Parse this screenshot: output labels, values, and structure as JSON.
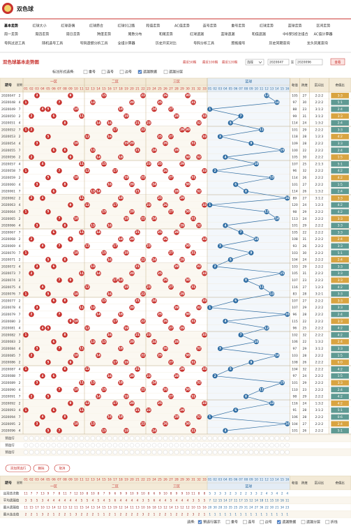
{
  "header": {
    "title": "双色球"
  },
  "nav": [
    [
      "基本走势",
      "红球大小",
      "红球奇偶",
      "红球质合",
      "红球012路",
      "和值走势",
      "AC值走势",
      "连号走势",
      "重号走势",
      "红球走势",
      "蓝球走势",
      "区间走势"
    ],
    [
      "周一走势",
      "周四走势",
      "周日走势",
      "跨度走势",
      "尾数分布",
      "和尾走势",
      "红球遗漏",
      "蓝球遗漏",
      "和值遗漏",
      "中6保5投注组合",
      "AC值计算器"
    ],
    [
      "号码过滤工具",
      "随机选号工具",
      "号码遗憾分析工具",
      "全组计算器",
      "历史开奖对比",
      "号码分析工具",
      "胆拖缩号",
      "历史同期查询",
      "龙头凤尾查询"
    ]
  ],
  "section_title": "双色球基本走势图",
  "range": {
    "options": [
      "最近50期",
      "最近100期",
      "最近120期"
    ],
    "select_label": "选择",
    "from": "2020047",
    "to_label": "至",
    "to": "2020096",
    "button": "查看"
  },
  "toolbar": {
    "label": "标注形式选择:",
    "options": [
      {
        "label": "重号",
        "checked": false
      },
      {
        "label": "连号",
        "checked": false
      },
      {
        "label": "边号",
        "checked": false
      },
      {
        "label": "遗漏数据",
        "checked": true
      },
      {
        "label": "遗漏分层",
        "checked": false
      }
    ]
  },
  "table": {
    "headers": {
      "issue": "期号",
      "week": "星期",
      "zones": [
        "一区",
        "二区",
        "三区"
      ],
      "blue": "蓝球",
      "sum": "和值",
      "span": "跨度",
      "zone_ratio": "区间比",
      "odd_even": "奇偶比"
    },
    "red_numbers": [
      "01",
      "02",
      "03",
      "04",
      "05",
      "06",
      "07",
      "08",
      "09",
      "10",
      "11",
      "12",
      "13",
      "14",
      "15",
      "16",
      "17",
      "18",
      "19",
      "20",
      "21",
      "22",
      "23",
      "24",
      "25",
      "26",
      "27",
      "28",
      "29",
      "30",
      "31",
      "32",
      "33"
    ],
    "blue_numbers": [
      "01",
      "02",
      "03",
      "04",
      "05",
      "06",
      "07",
      "08",
      "09",
      "10",
      "11",
      "12",
      "13",
      "14",
      "15",
      "16"
    ],
    "rows": [
      {
        "issue": "2020047",
        "week": 2,
        "reds": [
          3,
          9,
          15,
          22,
          26,
          30
        ],
        "blue": 12,
        "sum": 105,
        "span": 27,
        "zone": "2:2:2",
        "oe": "3:3"
      },
      {
        "issue": "2020048",
        "week": 4,
        "reds": [
          1,
          7,
          13,
          20,
          25,
          31
        ],
        "blue": 14,
        "sum": 97,
        "span": 30,
        "zone": "2:2:2",
        "oe": "5:1"
      },
      {
        "issue": "2020049",
        "week": 7,
        "reds": [
          4,
          5,
          10,
          18,
          24,
          27
        ],
        "blue": 1,
        "sum": 88,
        "span": 23,
        "zone": "3:1:2",
        "oe": "2:4"
      },
      {
        "issue": "2020050",
        "week": 2,
        "reds": [
          2,
          6,
          11,
          19,
          28,
          33
        ],
        "blue": 7,
        "sum": 99,
        "span": 31,
        "zone": "3:1:2",
        "oe": "3:3"
      },
      {
        "issue": "2020051",
        "week": 4,
        "reds": [
          8,
          14,
          16,
          21,
          23,
          32
        ],
        "blue": 5,
        "sum": 114,
        "span": 24,
        "zone": "1:3:2",
        "oe": "2:4"
      },
      {
        "issue": "2020052",
        "week": 7,
        "reds": [
          1,
          2,
          17,
          22,
          29,
          30
        ],
        "blue": 11,
        "sum": 101,
        "span": 29,
        "zone": "2:2:2",
        "oe": "3:3"
      },
      {
        "issue": "2020053",
        "week": 2,
        "reds": [
          5,
          12,
          16,
          25,
          27,
          33
        ],
        "blue": 3,
        "sum": 118,
        "span": 28,
        "zone": "1:2:3",
        "oe": "4:2"
      },
      {
        "issue": "2020054",
        "week": 4,
        "reds": [
          3,
          10,
          19,
          20,
          26,
          31
        ],
        "blue": 9,
        "sum": 109,
        "span": 28,
        "zone": "2:2:2",
        "oe": "3:3"
      },
      {
        "issue": "2020055",
        "week": 7,
        "reds": [
          6,
          8,
          13,
          21,
          24,
          28
        ],
        "blue": 15,
        "sum": 100,
        "span": 22,
        "zone": "2:2:2",
        "oe": "2:4"
      },
      {
        "issue": "2020056",
        "week": 2,
        "reds": [
          2,
          9,
          14,
          18,
          30,
          32
        ],
        "blue": 4,
        "sum": 105,
        "span": 30,
        "zone": "2:2:2",
        "oe": "1:5"
      },
      {
        "issue": "2020057",
        "week": 4,
        "reds": [
          4,
          11,
          15,
          23,
          25,
          29
        ],
        "blue": 10,
        "sum": 107,
        "span": 25,
        "zone": "2:1:3",
        "oe": "5:1"
      },
      {
        "issue": "2020058",
        "week": 7,
        "reds": [
          1,
          7,
          12,
          17,
          26,
          33
        ],
        "blue": 2,
        "sum": 96,
        "span": 32,
        "zone": "2:2:2",
        "oe": "4:2"
      },
      {
        "issue": "2020059",
        "week": 2,
        "reds": [
          5,
          10,
          19,
          22,
          27,
          31
        ],
        "blue": 13,
        "sum": 114,
        "span": 26,
        "zone": "2:2:2",
        "oe": "4:2"
      },
      {
        "issue": "2020060",
        "week": 4,
        "reds": [
          3,
          8,
          16,
          20,
          24,
          30
        ],
        "blue": 6,
        "sum": 101,
        "span": 27,
        "zone": "2:2:2",
        "oe": "1:5"
      },
      {
        "issue": "2020061",
        "week": 7,
        "reds": [
          6,
          13,
          14,
          21,
          28,
          32
        ],
        "blue": 8,
        "sum": 114,
        "span": 26,
        "zone": "1:3:2",
        "oe": "2:4"
      },
      {
        "issue": "2020062",
        "week": 2,
        "reds": [
          2,
          4,
          11,
          18,
          25,
          29
        ],
        "blue": 16,
        "sum": 89,
        "span": 27,
        "zone": "3:1:2",
        "oe": "3:3"
      },
      {
        "issue": "2020063",
        "week": 4,
        "reds": [
          9,
          12,
          17,
          23,
          26,
          33
        ],
        "blue": 1,
        "sum": 120,
        "span": 24,
        "zone": "1:2:3",
        "oe": "4:2"
      },
      {
        "issue": "2020064",
        "week": 7,
        "reds": [
          1,
          5,
          15,
          20,
          27,
          30
        ],
        "blue": 12,
        "sum": 98,
        "span": 29,
        "zone": "2:2:2",
        "oe": "4:2"
      },
      {
        "issue": "2020065",
        "week": 2,
        "reds": [
          7,
          10,
          19,
          22,
          24,
          31
        ],
        "blue": 14,
        "sum": 113,
        "span": 24,
        "zone": "2:2:2",
        "oe": "3:3"
      },
      {
        "issue": "2020066",
        "week": 4,
        "reds": [
          3,
          8,
          13,
          16,
          29,
          32
        ],
        "blue": 4,
        "sum": 101,
        "span": 29,
        "zone": "2:2:2",
        "oe": "3:3"
      },
      {
        "issue": "2020067",
        "week": 7,
        "reds": [
          6,
          11,
          14,
          21,
          25,
          28
        ],
        "blue": 7,
        "sum": 105,
        "span": 22,
        "zone": "2:2:2",
        "oe": "3:3"
      },
      {
        "issue": "2020068",
        "week": 2,
        "reds": [
          2,
          9,
          18,
          20,
          26,
          33
        ],
        "blue": 10,
        "sum": 108,
        "span": 31,
        "zone": "2:2:2",
        "oe": "2:4"
      },
      {
        "issue": "2020069",
        "week": 4,
        "reds": [
          4,
          7,
          12,
          17,
          23,
          30
        ],
        "blue": 3,
        "sum": 93,
        "span": 26,
        "zone": "2:2:2",
        "oe": "3:3"
      },
      {
        "issue": "2020070",
        "week": 7,
        "reds": [
          1,
          10,
          15,
          19,
          27,
          31
        ],
        "blue": 9,
        "sum": 103,
        "span": 30,
        "zone": "2:2:2",
        "oe": "5:1"
      },
      {
        "issue": "2020071",
        "week": 2,
        "reds": [
          5,
          8,
          16,
          22,
          24,
          29
        ],
        "blue": 5,
        "sum": 104,
        "span": 24,
        "zone": "2:2:2",
        "oe": "2:4"
      },
      {
        "issue": "2020072",
        "week": 4,
        "reds": [
          3,
          6,
          13,
          21,
          28,
          32
        ],
        "blue": 2,
        "sum": 103,
        "span": 29,
        "zone": "2:2:2",
        "oe": "3:3"
      },
      {
        "issue": "2020073",
        "week": 7,
        "reds": [
          2,
          11,
          14,
          20,
          25,
          33
        ],
        "blue": 15,
        "sum": 105,
        "span": 31,
        "zone": "2:2:2",
        "oe": "3:3"
      },
      {
        "issue": "2020074",
        "week": 2,
        "reds": [
          7,
          9,
          17,
          18,
          26,
          30
        ],
        "blue": 8,
        "sum": 107,
        "span": 23,
        "zone": "2:2:2",
        "oe": "3:3"
      },
      {
        "issue": "2020075",
        "week": 4,
        "reds": [
          4,
          12,
          19,
          23,
          27,
          31
        ],
        "blue": 11,
        "sum": 116,
        "span": 27,
        "zone": "1:2:3",
        "oe": "4:2"
      },
      {
        "issue": "2020076",
        "week": 7,
        "reds": [
          1,
          5,
          10,
          16,
          22,
          29
        ],
        "blue": 13,
        "sum": 83,
        "span": 28,
        "zone": "3:2:1",
        "oe": "3:3"
      },
      {
        "issue": "2020077",
        "week": 2,
        "reds": [
          6,
          8,
          15,
          21,
          24,
          33
        ],
        "blue": 6,
        "sum": 107,
        "span": 27,
        "zone": "2:2:2",
        "oe": "3:3"
      },
      {
        "issue": "2020078",
        "week": 4,
        "reds": [
          3,
          11,
          13,
          20,
          28,
          32
        ],
        "blue": 1,
        "sum": 107,
        "span": 29,
        "zone": "2:2:2",
        "oe": "3:3"
      },
      {
        "issue": "2020079",
        "week": 7,
        "reds": [
          2,
          7,
          14,
          18,
          25,
          30
        ],
        "blue": 16,
        "sum": 96,
        "span": 28,
        "zone": "2:2:2",
        "oe": "2:4"
      },
      {
        "issue": "2020080",
        "week": 2,
        "reds": [
          9,
          10,
          17,
          22,
          26,
          31
        ],
        "blue": 4,
        "sum": 115,
        "span": 22,
        "zone": "2:2:2",
        "oe": "3:3"
      },
      {
        "issue": "2020081",
        "week": 4,
        "reds": [
          4,
          5,
          12,
          19,
          27,
          29
        ],
        "blue": 12,
        "sum": 96,
        "span": 25,
        "zone": "2:2:2",
        "oe": "4:2"
      },
      {
        "issue": "2020082",
        "week": 7,
        "reds": [
          1,
          8,
          16,
          21,
          23,
          33
        ],
        "blue": 7,
        "sum": 102,
        "span": 32,
        "zone": "2:2:2",
        "oe": "4:2"
      },
      {
        "issue": "2020083",
        "week": 2,
        "reds": [
          6,
          13,
          15,
          20,
          24,
          28
        ],
        "blue": 10,
        "sum": 106,
        "span": 22,
        "zone": "1:3:2",
        "oe": "2:4"
      },
      {
        "issue": "2020084",
        "week": 4,
        "reds": [
          3,
          7,
          11,
          18,
          26,
          32
        ],
        "blue": 3,
        "sum": 97,
        "span": 29,
        "zone": "3:1:2",
        "oe": "3:3"
      },
      {
        "issue": "2020085",
        "week": 7,
        "reds": [
          2,
          10,
          14,
          22,
          25,
          30
        ],
        "blue": 14,
        "sum": 103,
        "span": 28,
        "zone": "2:2:2",
        "oe": "1:5"
      },
      {
        "issue": "2020086",
        "week": 2,
        "reds": [
          5,
          9,
          17,
          19,
          27,
          31
        ],
        "blue": 9,
        "sum": 108,
        "span": 26,
        "zone": "2:2:2",
        "oe": "6:0"
      },
      {
        "issue": "2020087",
        "week": 4,
        "reds": [
          1,
          8,
          12,
          21,
          29,
          33
        ],
        "blue": 5,
        "sum": 104,
        "span": 32,
        "zone": "2:2:2",
        "oe": "4:2"
      },
      {
        "issue": "2020088",
        "week": 7,
        "reds": [
          4,
          6,
          16,
          20,
          23,
          28
        ],
        "blue": 2,
        "sum": 97,
        "span": 24,
        "zone": "2:2:2",
        "oe": "1:5"
      },
      {
        "issue": "2020089",
        "week": 2,
        "reds": [
          3,
          11,
          13,
          18,
          24,
          32
        ],
        "blue": 15,
        "sum": 101,
        "span": 29,
        "zone": "2:2:2",
        "oe": "3:3"
      },
      {
        "issue": "2020090",
        "week": 4,
        "reds": [
          7,
          10,
          15,
          22,
          26,
          30
        ],
        "blue": 11,
        "sum": 110,
        "span": 23,
        "zone": "2:2:2",
        "oe": "2:4"
      },
      {
        "issue": "2020091",
        "week": 7,
        "reds": [
          2,
          5,
          14,
          19,
          27,
          31
        ],
        "blue": 8,
        "sum": 98,
        "span": 29,
        "zone": "2:2:2",
        "oe": "4:2"
      },
      {
        "issue": "2020092",
        "week": 2,
        "reds": [
          9,
          12,
          17,
          20,
          25,
          33
        ],
        "blue": 13,
        "sum": 116,
        "span": 24,
        "zone": "1:3:2",
        "oe": "4:2"
      },
      {
        "issue": "2020093",
        "week": 4,
        "reds": [
          1,
          6,
          11,
          21,
          23,
          29
        ],
        "blue": 6,
        "sum": 91,
        "span": 28,
        "zone": "3:1:2",
        "oe": "5:1"
      },
      {
        "issue": "2020094",
        "week": 7,
        "reds": [
          4,
          8,
          16,
          18,
          28,
          32
        ],
        "blue": 1,
        "sum": 106,
        "span": 28,
        "zone": "2:2:2",
        "oe": "0:6"
      },
      {
        "issue": "2020095",
        "week": 2,
        "reds": [
          3,
          10,
          13,
          22,
          26,
          30
        ],
        "blue": 16,
        "sum": 104,
        "span": 27,
        "zone": "2:2:2",
        "oe": "2:4"
      },
      {
        "issue": "2020096",
        "week": 4,
        "reds": [
          5,
          7,
          15,
          19,
          24,
          31
        ],
        "blue": 4,
        "sum": 101,
        "span": 26,
        "zone": "2:2:2",
        "oe": "5:1"
      }
    ],
    "preselect_rows": [
      "预选行",
      "预选行",
      "预选行"
    ]
  },
  "buttons": [
    "添加预选行",
    "删除",
    "取消"
  ],
  "stats": [
    {
      "label": "出现总次数",
      "values": [
        11,
        7,
        7,
        13,
        9,
        7,
        8,
        11,
        7,
        12,
        10,
        8,
        10,
        8,
        7,
        9,
        6,
        9,
        9,
        10,
        9,
        10,
        8,
        6,
        9,
        10,
        8,
        9,
        9,
        10,
        11,
        8,
        8,
        5,
        3,
        3,
        3,
        2,
        3,
        2,
        2,
        3,
        3,
        2,
        4,
        3,
        4,
        2,
        4
      ]
    },
    {
      "label": "平均遗漏值",
      "values": [
        3,
        5,
        5,
        3,
        4,
        4,
        4,
        4,
        4,
        4,
        5,
        5,
        4,
        5,
        4,
        5,
        6,
        4,
        4,
        4,
        4,
        3,
        5,
        6,
        4,
        4,
        5,
        4,
        4,
        4,
        3,
        5,
        5,
        7,
        12,
        15,
        14,
        17,
        11,
        17,
        15,
        12,
        14,
        18,
        11,
        15,
        10,
        16,
        11
      ]
    },
    {
      "label": "最大遗漏值",
      "values": [
        11,
        15,
        17,
        10,
        13,
        14,
        12,
        13,
        12,
        11,
        15,
        14,
        13,
        14,
        15,
        13,
        19,
        12,
        14,
        11,
        13,
        10,
        16,
        18,
        13,
        12,
        14,
        13,
        12,
        12,
        10,
        15,
        16,
        20,
        30,
        28,
        33,
        35,
        25,
        29,
        31,
        24,
        27,
        36,
        22,
        30,
        21,
        34,
        23
      ]
    },
    {
      "label": "最大连出值",
      "values": [
        2,
        2,
        1,
        3,
        2,
        1,
        2,
        2,
        1,
        3,
        2,
        2,
        2,
        1,
        1,
        2,
        1,
        2,
        2,
        2,
        2,
        3,
        2,
        1,
        2,
        2,
        1,
        2,
        2,
        2,
        3,
        2,
        1,
        1,
        1,
        1,
        1,
        1,
        1,
        1,
        1,
        1,
        1,
        1,
        1,
        1,
        1,
        1,
        1
      ]
    }
  ],
  "footer": {
    "label": "选择:",
    "options": [
      {
        "label": "預选行展示",
        "checked": true
      },
      {
        "label": "重号",
        "checked": false
      },
      {
        "label": "连号",
        "checked": false
      },
      {
        "label": "边号",
        "checked": false
      },
      {
        "label": "遗漏数据",
        "checked": true
      },
      {
        "label": "遗漏分层",
        "checked": false
      },
      {
        "label": "折线",
        "checked": false
      }
    ]
  }
}
